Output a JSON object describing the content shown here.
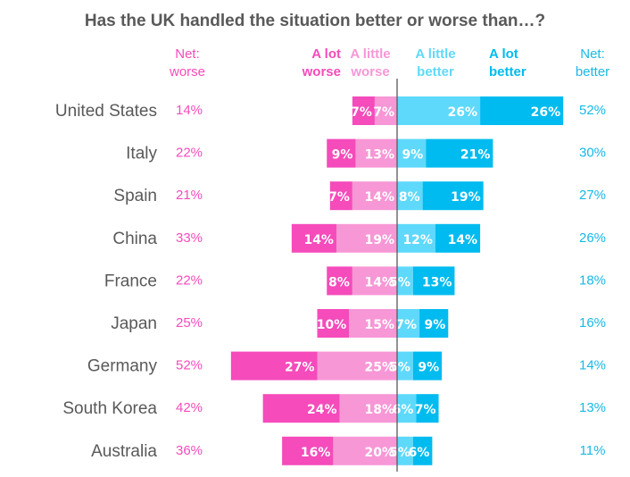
{
  "chart_data": {
    "type": "bar",
    "subtype": "diverging-stacked-horizontal",
    "title": "Has the UK handled the situation better or worse than…?",
    "headers": {
      "net_worse": [
        "Net:",
        "worse"
      ],
      "a_lot_worse": [
        "A lot",
        "worse"
      ],
      "a_little_worse": [
        "A little",
        "worse"
      ],
      "a_little_better": [
        "A little",
        "better"
      ],
      "a_lot_better": [
        "A lot",
        "better"
      ],
      "net_better": [
        "Net:",
        "better"
      ]
    },
    "colors": {
      "a_lot_worse": "#f54bbb",
      "a_little_worse": "#f797d6",
      "a_little_better": "#5ed9fb",
      "a_lot_better": "#00bbf0",
      "net_worse": "#f54bbb",
      "net_better": "#1ab8e6",
      "country": "#595959",
      "axis": "#595959"
    },
    "categories": [
      "United States",
      "Italy",
      "Spain",
      "China",
      "France",
      "Japan",
      "Germany",
      "South Korea",
      "Australia"
    ],
    "series": [
      {
        "name": "A lot worse",
        "key": "a_lot_worse",
        "values": [
          7,
          9,
          7,
          14,
          8,
          10,
          27,
          24,
          16
        ]
      },
      {
        "name": "A little worse",
        "key": "a_little_worse",
        "values": [
          7,
          13,
          14,
          19,
          14,
          15,
          25,
          18,
          20
        ]
      },
      {
        "name": "A little better",
        "key": "a_little_better",
        "values": [
          26,
          9,
          8,
          12,
          5,
          7,
          5,
          6,
          5
        ]
      },
      {
        "name": "A lot better",
        "key": "a_lot_better",
        "values": [
          26,
          21,
          19,
          14,
          13,
          9,
          9,
          7,
          6
        ]
      }
    ],
    "net_worse": [
      14,
      22,
      21,
      33,
      22,
      25,
      52,
      42,
      36
    ],
    "net_better": [
      52,
      30,
      27,
      26,
      18,
      16,
      14,
      13,
      11
    ],
    "unit": "%"
  }
}
